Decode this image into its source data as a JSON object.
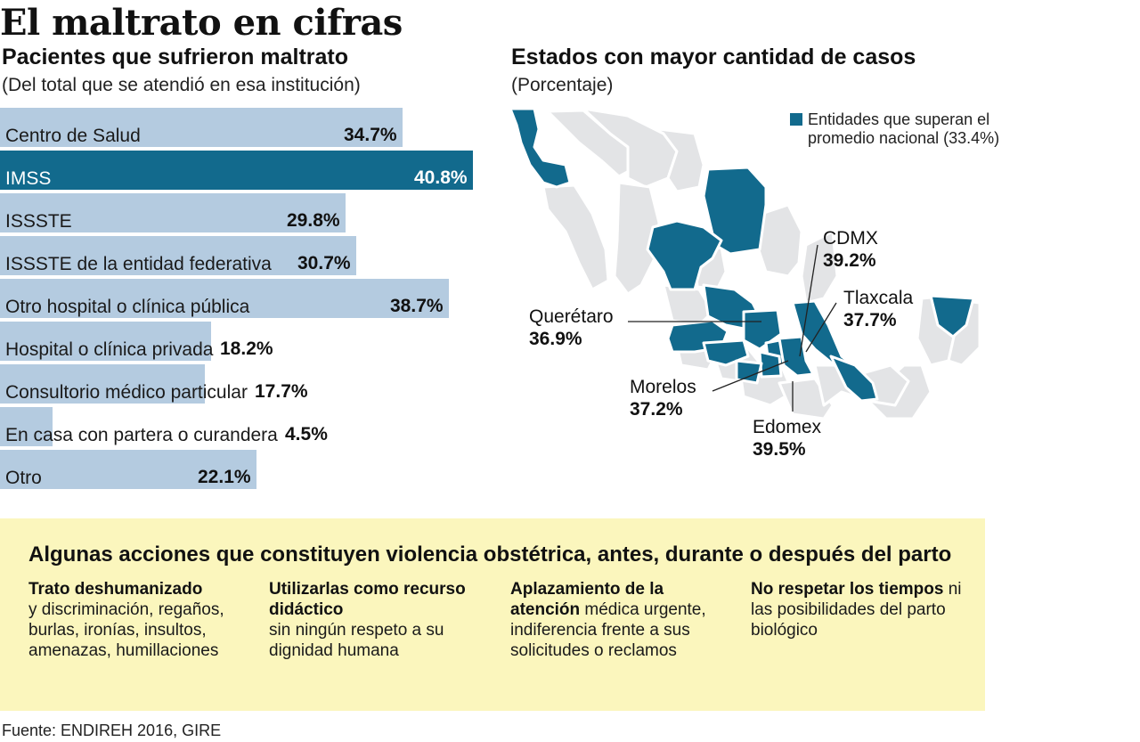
{
  "title": "El maltrato en cifras",
  "left": {
    "heading": "Pacientes que sufrieron maltrato",
    "note": "(Del total que se atendió en esa institución)"
  },
  "chart_data": {
    "type": "bar",
    "orientation": "horizontal",
    "title": "Pacientes que sufrieron maltrato",
    "subtitle": "(Del total que se atendió en esa institución)",
    "categories": [
      "Centro de Salud",
      "IMSS",
      "ISSSTE",
      "ISSSTE de la entidad federativa",
      "Otro hospital o clínica pública",
      "Hospital o clínica privada",
      "Consultorio médico particular",
      "En casa con partera o curandera",
      "Otro"
    ],
    "values": [
      34.7,
      40.8,
      29.8,
      30.7,
      38.7,
      18.2,
      17.7,
      4.5,
      22.1
    ],
    "value_labels": [
      "34.7%",
      "40.8%",
      "29.8%",
      "30.7%",
      "38.7%",
      "18.2%",
      "17.7%",
      "4.5%",
      "22.1%"
    ],
    "highlight_index": 1,
    "unit": "%",
    "xlim": [
      0,
      43
    ]
  },
  "colors": {
    "bar": "#b4cbe0",
    "highlight": "#126a8d",
    "state": "#126a8d",
    "other_state": "#e3e4e6",
    "panel": "#fbf6bd"
  },
  "map": {
    "heading": "Estados con mayor cantidad de casos",
    "note": "(Porcentaje)",
    "legend": "Entidades que superan el promedio nacional (33.4%)",
    "callouts": [
      {
        "name": "CDMX",
        "value": "39.2%"
      },
      {
        "name": "Tlaxcala",
        "value": "37.7%"
      },
      {
        "name": "Querétaro",
        "value": "36.9%"
      },
      {
        "name": "Morelos",
        "value": "37.2%"
      },
      {
        "name": "Edomex",
        "value": "39.5%"
      }
    ]
  },
  "panel": {
    "heading": "Algunas acciones que constituyen violencia obstétrica, antes, durante o después del parto",
    "columns": [
      {
        "bold": "Trato deshumanizado",
        "text": "y discriminación, regaños, burlas, ironías, insultos, amenazas, humillaciones"
      },
      {
        "bold": "Utilizarlas como recurso didáctico",
        "text": "sin ningún respeto a su dignidad humana"
      },
      {
        "bold": "Aplazamiento de la atención",
        "text": "médica urgente, indiferencia frente a sus solicitudes o reclamos"
      },
      {
        "bold": "No respetar los tiempos",
        "text": "ni las posibilidades del parto biológico"
      }
    ]
  },
  "source": "Fuente: ENDIREH 2016, GIRE"
}
